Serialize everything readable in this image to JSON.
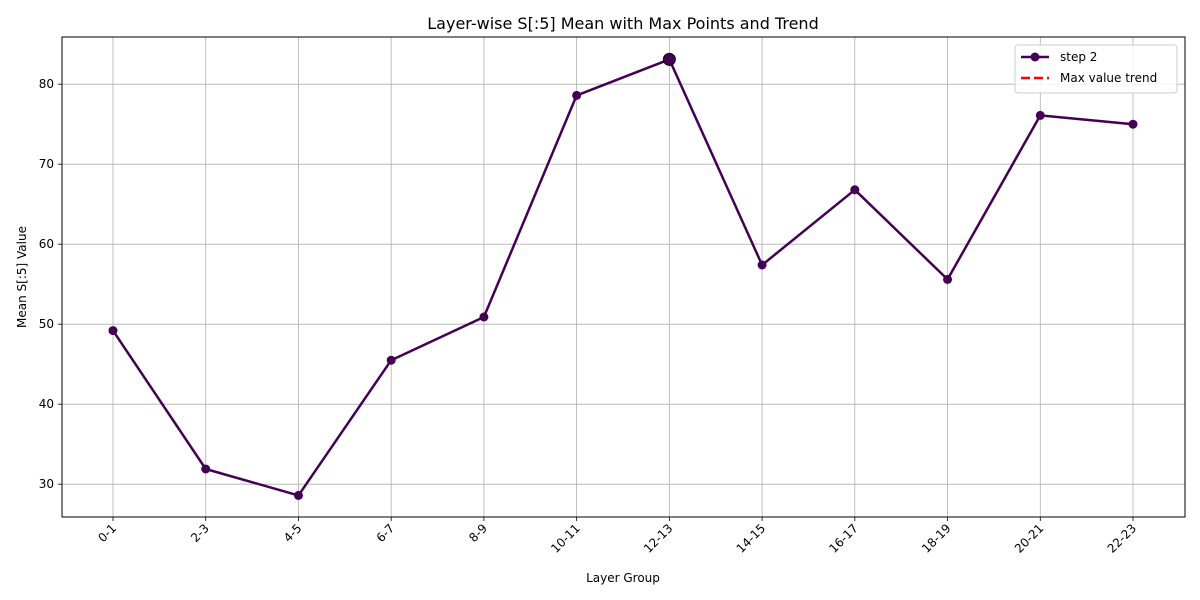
{
  "chart_data": {
    "type": "line",
    "title": "Layer-wise S[:5] Mean with Max Points and Trend",
    "xlabel": "Layer Group",
    "ylabel": "Mean S[:5] Value",
    "categories": [
      "0-1",
      "2-3",
      "4-5",
      "6-7",
      "8-9",
      "10-11",
      "12-13",
      "14-15",
      "16-17",
      "18-19",
      "20-21",
      "22-23"
    ],
    "series": [
      {
        "name": "step 2",
        "color": "#440154",
        "values": [
          49.2,
          31.9,
          28.6,
          45.5,
          50.9,
          78.6,
          83.1,
          57.4,
          66.8,
          55.6,
          76.1,
          75.0
        ]
      }
    ],
    "max_point": {
      "category": "12-13",
      "value": 83.1
    },
    "trend": {
      "name": "Max value trend",
      "color": "#ff0000",
      "style": "dashed"
    },
    "y_ticks": [
      30,
      40,
      50,
      60,
      70,
      80
    ],
    "ylim": [
      25.9,
      85.9
    ],
    "grid": true,
    "legend_position": "top-right"
  }
}
